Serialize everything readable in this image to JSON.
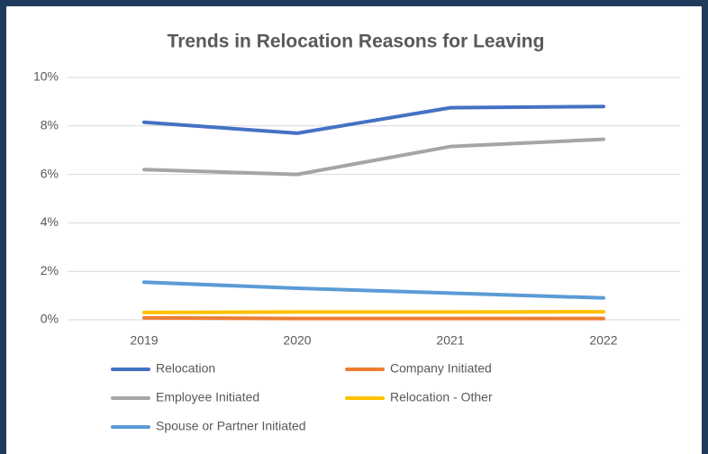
{
  "chart_data": {
    "type": "line",
    "title": "Trends in Relocation Reasons for Leaving",
    "categories": [
      "2019",
      "2020",
      "2021",
      "2022"
    ],
    "series": [
      {
        "name": "Relocation",
        "color": "#4472c4",
        "values": [
          8.15,
          7.7,
          8.75,
          8.8
        ]
      },
      {
        "name": "Company Initiated",
        "color": "#ed7d31",
        "values": [
          0.08,
          0.05,
          0.05,
          0.05
        ]
      },
      {
        "name": "Employee Initiated",
        "color": "#a5a5a5",
        "values": [
          6.2,
          6.0,
          7.15,
          7.45
        ]
      },
      {
        "name": "Relocation - Other",
        "color": "#ffc000",
        "values": [
          0.3,
          0.32,
          0.32,
          0.33
        ]
      },
      {
        "name": "Spouse or Partner Initiated",
        "color": "#5b9bd5",
        "values": [
          1.55,
          1.3,
          1.1,
          0.9
        ]
      }
    ],
    "ylim": [
      0,
      10
    ],
    "yticks": [
      {
        "value": 0,
        "label": "0%"
      },
      {
        "value": 2,
        "label": "2%"
      },
      {
        "value": 4,
        "label": "4%"
      },
      {
        "value": 6,
        "label": "6%"
      },
      {
        "value": 8,
        "label": "8%"
      },
      {
        "value": 10,
        "label": "10%"
      }
    ],
    "grid": true,
    "legend": "bottom"
  }
}
